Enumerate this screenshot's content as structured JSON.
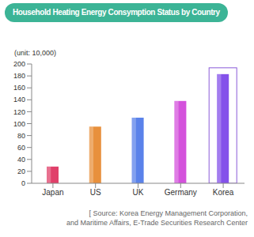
{
  "chart_data": {
    "type": "bar",
    "title": "Household Heating Energy Consymption Status by Country",
    "y_label": "(unit: 10,000)",
    "categories": [
      "Japan",
      "US",
      "UK",
      "Germany",
      "Korea"
    ],
    "values": [
      28,
      95,
      110,
      138,
      183
    ],
    "colors": [
      "#e0406a",
      "#e8903c",
      "#5a82ea",
      "#d452dc",
      "#8452ea"
    ],
    "ylim": [
      0,
      200
    ],
    "yticks": [
      0,
      20,
      40,
      60,
      80,
      100,
      120,
      140,
      160,
      180,
      200
    ],
    "grid": false,
    "annotations": [
      "[ Source: Korea Energy Management Corporation,",
      "and Maritime Affairs, E-Trade Securities Research Center"
    ]
  }
}
